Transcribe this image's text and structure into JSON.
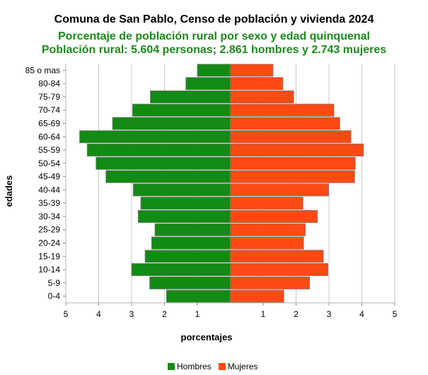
{
  "chart_data": {
    "type": "bar",
    "orientation": "horizontal-population-pyramid",
    "title": "Comuna de San Pablo, Censo de población y vivienda 2024",
    "subtitle_lines": [
      "Porcentaje de población rural por sexo y edad quinquenal",
      "Población rural: 5.604 personas; 2.861 hombres y 2.743 mujeres"
    ],
    "xlabel": "porcentajes",
    "ylabel": "edades",
    "xlim": [
      -5,
      5
    ],
    "x_ticks": [
      -5,
      -4,
      -3,
      -2,
      -1,
      1,
      2,
      3,
      4,
      5
    ],
    "x_tick_labels": [
      "5",
      "4",
      "3",
      "2",
      "1",
      "1",
      "2",
      "3",
      "4",
      "5"
    ],
    "grid": true,
    "legend_position": "bottom",
    "categories": [
      "85 o mas",
      "80-84",
      "75-79",
      "70-74",
      "65-69",
      "60-64",
      "55-59",
      "50-54",
      "45-49",
      "40-44",
      "35-39",
      "30-34",
      "25-29",
      "20-24",
      "15-19",
      "10-14",
      "5-9",
      "0-4"
    ],
    "series": [
      {
        "name": "Hombres",
        "color": "#138a13",
        "values": [
          1.0,
          1.35,
          2.43,
          2.97,
          3.58,
          4.58,
          4.35,
          4.08,
          3.78,
          2.95,
          2.72,
          2.8,
          2.29,
          2.39,
          2.59,
          3.0,
          2.45,
          1.94
        ]
      },
      {
        "name": "Mujeres",
        "color": "#ff4a14",
        "values": [
          1.3,
          1.6,
          1.93,
          3.15,
          3.33,
          3.67,
          4.05,
          3.8,
          3.78,
          2.99,
          2.21,
          2.65,
          2.28,
          2.23,
          2.83,
          2.97,
          2.41,
          1.63
        ]
      }
    ]
  }
}
